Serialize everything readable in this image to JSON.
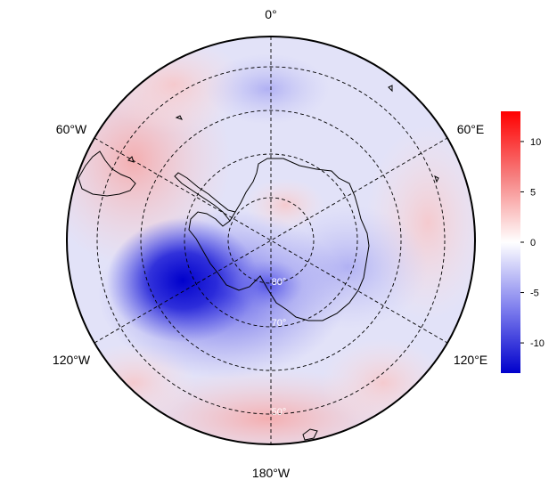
{
  "map": {
    "projection": "south polar stereographic",
    "colormap": [
      "#0000cc",
      "#3a3ae6",
      "#8c8cf2",
      "#ffffff",
      "#f9a0a0",
      "#f05050",
      "#ff0000"
    ],
    "longitude_labels": {
      "top": "0°",
      "upper_left": "60°W",
      "upper_right": "60°E",
      "lower_left": "120°W",
      "lower_right": "120°E",
      "bottom": "180°W"
    },
    "latitude_labels": {
      "inner": "80°",
      "middle": "70°",
      "outer": "50°"
    },
    "graticule": "dashed",
    "coastlines": "Antarctica and southern tips of continents"
  },
  "colorbar": {
    "range": [
      -13,
      13
    ],
    "ticks": [
      "10",
      "5",
      "0",
      "-5",
      "-10"
    ]
  }
}
